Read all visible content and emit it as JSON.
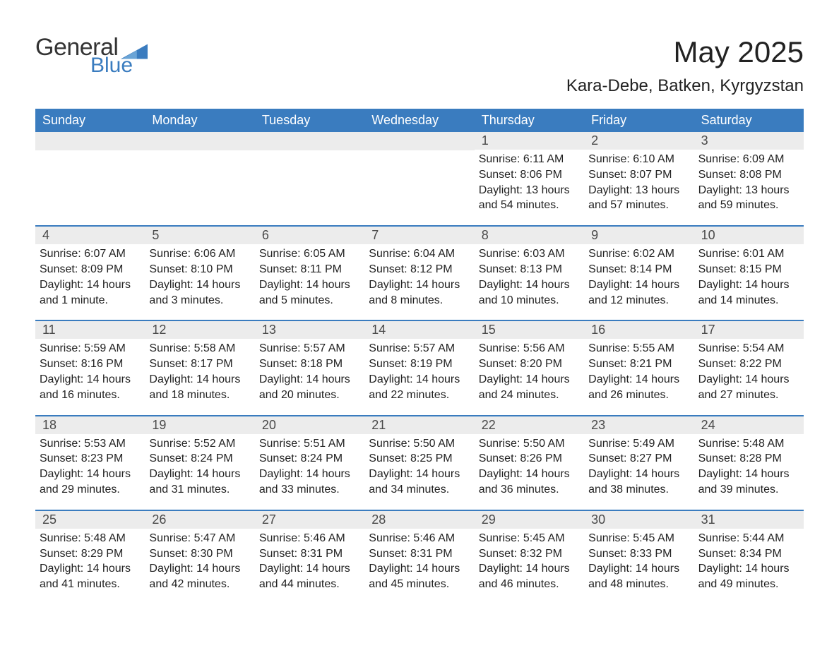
{
  "brand": {
    "word1": "General",
    "word2": "Blue",
    "text_color": "#333333",
    "accent_color": "#3a7cbf"
  },
  "title": "May 2025",
  "location": "Kara-Debe, Batken, Kyrgyzstan",
  "colors": {
    "header_bg": "#3a7cbf",
    "header_text": "#ffffff",
    "daynum_bg": "#ececec",
    "daynum_text": "#4a4a4a",
    "body_text": "#222222",
    "row_border": "#3a7cbf",
    "page_bg": "#ffffff"
  },
  "typography": {
    "title_fontsize": 42,
    "location_fontsize": 24,
    "weekday_fontsize": 18,
    "daynum_fontsize": 18,
    "detail_fontsize": 16
  },
  "layout": {
    "columns": 7,
    "rows": 5,
    "leading_blanks": 4
  },
  "weekdays": [
    "Sunday",
    "Monday",
    "Tuesday",
    "Wednesday",
    "Thursday",
    "Friday",
    "Saturday"
  ],
  "days": [
    {
      "num": "1",
      "sunrise": "Sunrise: 6:11 AM",
      "sunset": "Sunset: 8:06 PM",
      "d1": "Daylight: 13 hours",
      "d2": "and 54 minutes."
    },
    {
      "num": "2",
      "sunrise": "Sunrise: 6:10 AM",
      "sunset": "Sunset: 8:07 PM",
      "d1": "Daylight: 13 hours",
      "d2": "and 57 minutes."
    },
    {
      "num": "3",
      "sunrise": "Sunrise: 6:09 AM",
      "sunset": "Sunset: 8:08 PM",
      "d1": "Daylight: 13 hours",
      "d2": "and 59 minutes."
    },
    {
      "num": "4",
      "sunrise": "Sunrise: 6:07 AM",
      "sunset": "Sunset: 8:09 PM",
      "d1": "Daylight: 14 hours",
      "d2": "and 1 minute."
    },
    {
      "num": "5",
      "sunrise": "Sunrise: 6:06 AM",
      "sunset": "Sunset: 8:10 PM",
      "d1": "Daylight: 14 hours",
      "d2": "and 3 minutes."
    },
    {
      "num": "6",
      "sunrise": "Sunrise: 6:05 AM",
      "sunset": "Sunset: 8:11 PM",
      "d1": "Daylight: 14 hours",
      "d2": "and 5 minutes."
    },
    {
      "num": "7",
      "sunrise": "Sunrise: 6:04 AM",
      "sunset": "Sunset: 8:12 PM",
      "d1": "Daylight: 14 hours",
      "d2": "and 8 minutes."
    },
    {
      "num": "8",
      "sunrise": "Sunrise: 6:03 AM",
      "sunset": "Sunset: 8:13 PM",
      "d1": "Daylight: 14 hours",
      "d2": "and 10 minutes."
    },
    {
      "num": "9",
      "sunrise": "Sunrise: 6:02 AM",
      "sunset": "Sunset: 8:14 PM",
      "d1": "Daylight: 14 hours",
      "d2": "and 12 minutes."
    },
    {
      "num": "10",
      "sunrise": "Sunrise: 6:01 AM",
      "sunset": "Sunset: 8:15 PM",
      "d1": "Daylight: 14 hours",
      "d2": "and 14 minutes."
    },
    {
      "num": "11",
      "sunrise": "Sunrise: 5:59 AM",
      "sunset": "Sunset: 8:16 PM",
      "d1": "Daylight: 14 hours",
      "d2": "and 16 minutes."
    },
    {
      "num": "12",
      "sunrise": "Sunrise: 5:58 AM",
      "sunset": "Sunset: 8:17 PM",
      "d1": "Daylight: 14 hours",
      "d2": "and 18 minutes."
    },
    {
      "num": "13",
      "sunrise": "Sunrise: 5:57 AM",
      "sunset": "Sunset: 8:18 PM",
      "d1": "Daylight: 14 hours",
      "d2": "and 20 minutes."
    },
    {
      "num": "14",
      "sunrise": "Sunrise: 5:57 AM",
      "sunset": "Sunset: 8:19 PM",
      "d1": "Daylight: 14 hours",
      "d2": "and 22 minutes."
    },
    {
      "num": "15",
      "sunrise": "Sunrise: 5:56 AM",
      "sunset": "Sunset: 8:20 PM",
      "d1": "Daylight: 14 hours",
      "d2": "and 24 minutes."
    },
    {
      "num": "16",
      "sunrise": "Sunrise: 5:55 AM",
      "sunset": "Sunset: 8:21 PM",
      "d1": "Daylight: 14 hours",
      "d2": "and 26 minutes."
    },
    {
      "num": "17",
      "sunrise": "Sunrise: 5:54 AM",
      "sunset": "Sunset: 8:22 PM",
      "d1": "Daylight: 14 hours",
      "d2": "and 27 minutes."
    },
    {
      "num": "18",
      "sunrise": "Sunrise: 5:53 AM",
      "sunset": "Sunset: 8:23 PM",
      "d1": "Daylight: 14 hours",
      "d2": "and 29 minutes."
    },
    {
      "num": "19",
      "sunrise": "Sunrise: 5:52 AM",
      "sunset": "Sunset: 8:24 PM",
      "d1": "Daylight: 14 hours",
      "d2": "and 31 minutes."
    },
    {
      "num": "20",
      "sunrise": "Sunrise: 5:51 AM",
      "sunset": "Sunset: 8:24 PM",
      "d1": "Daylight: 14 hours",
      "d2": "and 33 minutes."
    },
    {
      "num": "21",
      "sunrise": "Sunrise: 5:50 AM",
      "sunset": "Sunset: 8:25 PM",
      "d1": "Daylight: 14 hours",
      "d2": "and 34 minutes."
    },
    {
      "num": "22",
      "sunrise": "Sunrise: 5:50 AM",
      "sunset": "Sunset: 8:26 PM",
      "d1": "Daylight: 14 hours",
      "d2": "and 36 minutes."
    },
    {
      "num": "23",
      "sunrise": "Sunrise: 5:49 AM",
      "sunset": "Sunset: 8:27 PM",
      "d1": "Daylight: 14 hours",
      "d2": "and 38 minutes."
    },
    {
      "num": "24",
      "sunrise": "Sunrise: 5:48 AM",
      "sunset": "Sunset: 8:28 PM",
      "d1": "Daylight: 14 hours",
      "d2": "and 39 minutes."
    },
    {
      "num": "25",
      "sunrise": "Sunrise: 5:48 AM",
      "sunset": "Sunset: 8:29 PM",
      "d1": "Daylight: 14 hours",
      "d2": "and 41 minutes."
    },
    {
      "num": "26",
      "sunrise": "Sunrise: 5:47 AM",
      "sunset": "Sunset: 8:30 PM",
      "d1": "Daylight: 14 hours",
      "d2": "and 42 minutes."
    },
    {
      "num": "27",
      "sunrise": "Sunrise: 5:46 AM",
      "sunset": "Sunset: 8:31 PM",
      "d1": "Daylight: 14 hours",
      "d2": "and 44 minutes."
    },
    {
      "num": "28",
      "sunrise": "Sunrise: 5:46 AM",
      "sunset": "Sunset: 8:31 PM",
      "d1": "Daylight: 14 hours",
      "d2": "and 45 minutes."
    },
    {
      "num": "29",
      "sunrise": "Sunrise: 5:45 AM",
      "sunset": "Sunset: 8:32 PM",
      "d1": "Daylight: 14 hours",
      "d2": "and 46 minutes."
    },
    {
      "num": "30",
      "sunrise": "Sunrise: 5:45 AM",
      "sunset": "Sunset: 8:33 PM",
      "d1": "Daylight: 14 hours",
      "d2": "and 48 minutes."
    },
    {
      "num": "31",
      "sunrise": "Sunrise: 5:44 AM",
      "sunset": "Sunset: 8:34 PM",
      "d1": "Daylight: 14 hours",
      "d2": "and 49 minutes."
    }
  ]
}
